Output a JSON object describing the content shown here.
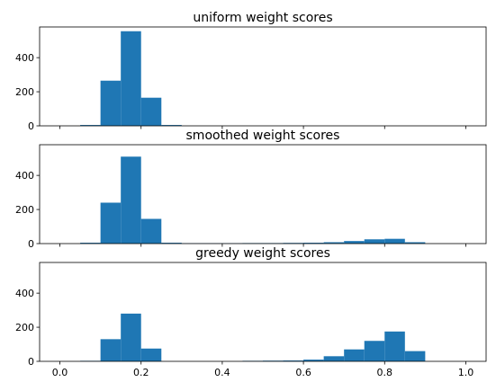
{
  "chart_data": [
    {
      "type": "bar",
      "title": "uniform weight scores",
      "xlabel": "",
      "ylabel": "",
      "xlim": [
        -0.05,
        1.05
      ],
      "ylim": [
        0,
        580
      ],
      "bin_width": 0.05,
      "bins": [
        {
          "x": 0.05,
          "value": 5
        },
        {
          "x": 0.1,
          "value": 265
        },
        {
          "x": 0.15,
          "value": 555
        },
        {
          "x": 0.2,
          "value": 165
        },
        {
          "x": 0.25,
          "value": 5
        }
      ],
      "yticks": [
        "0",
        "200",
        "400"
      ],
      "ytick_values": [
        0,
        200,
        400
      ],
      "xticks": [
        0.0,
        0.2,
        0.4,
        0.6,
        0.8,
        1.0
      ],
      "xtick_labels_visible": false,
      "bar_color": "#1f77b4"
    },
    {
      "type": "bar",
      "title": "smoothed weight scores",
      "xlabel": "",
      "ylabel": "",
      "xlim": [
        -0.05,
        1.05
      ],
      "ylim": [
        0,
        580
      ],
      "bin_width": 0.05,
      "bins": [
        {
          "x": 0.05,
          "value": 5
        },
        {
          "x": 0.1,
          "value": 240
        },
        {
          "x": 0.15,
          "value": 510
        },
        {
          "x": 0.2,
          "value": 145
        },
        {
          "x": 0.25,
          "value": 5
        },
        {
          "x": 0.3,
          "value": 2
        },
        {
          "x": 0.35,
          "value": 2
        },
        {
          "x": 0.4,
          "value": 2
        },
        {
          "x": 0.45,
          "value": 3
        },
        {
          "x": 0.5,
          "value": 3
        },
        {
          "x": 0.55,
          "value": 4
        },
        {
          "x": 0.6,
          "value": 5
        },
        {
          "x": 0.65,
          "value": 8
        },
        {
          "x": 0.7,
          "value": 15
        },
        {
          "x": 0.75,
          "value": 25
        },
        {
          "x": 0.8,
          "value": 28
        },
        {
          "x": 0.85,
          "value": 8
        }
      ],
      "yticks": [
        "0",
        "200",
        "400"
      ],
      "ytick_values": [
        0,
        200,
        400
      ],
      "xticks": [
        0.0,
        0.2,
        0.4,
        0.6,
        0.8,
        1.0
      ],
      "xtick_labels_visible": false,
      "bar_color": "#1f77b4"
    },
    {
      "type": "bar",
      "title": "greedy weight scores",
      "xlabel": "",
      "ylabel": "",
      "xlim": [
        -0.05,
        1.05
      ],
      "ylim": [
        0,
        580
      ],
      "bin_width": 0.05,
      "bins": [
        {
          "x": 0.05,
          "value": 3
        },
        {
          "x": 0.1,
          "value": 130
        },
        {
          "x": 0.15,
          "value": 280
        },
        {
          "x": 0.2,
          "value": 75
        },
        {
          "x": 0.45,
          "value": 3
        },
        {
          "x": 0.5,
          "value": 4
        },
        {
          "x": 0.55,
          "value": 5
        },
        {
          "x": 0.6,
          "value": 10
        },
        {
          "x": 0.65,
          "value": 30
        },
        {
          "x": 0.7,
          "value": 70
        },
        {
          "x": 0.75,
          "value": 120
        },
        {
          "x": 0.8,
          "value": 175
        },
        {
          "x": 0.85,
          "value": 60
        }
      ],
      "yticks": [
        "0",
        "200",
        "400"
      ],
      "ytick_values": [
        0,
        200,
        400
      ],
      "xticks": [
        0.0,
        0.2,
        0.4,
        0.6,
        0.8,
        1.0
      ],
      "xtick_labels": [
        "0.0",
        "0.2",
        "0.4",
        "0.6",
        "0.8",
        "1.0"
      ],
      "xtick_labels_visible": true,
      "bar_color": "#1f77b4"
    }
  ]
}
